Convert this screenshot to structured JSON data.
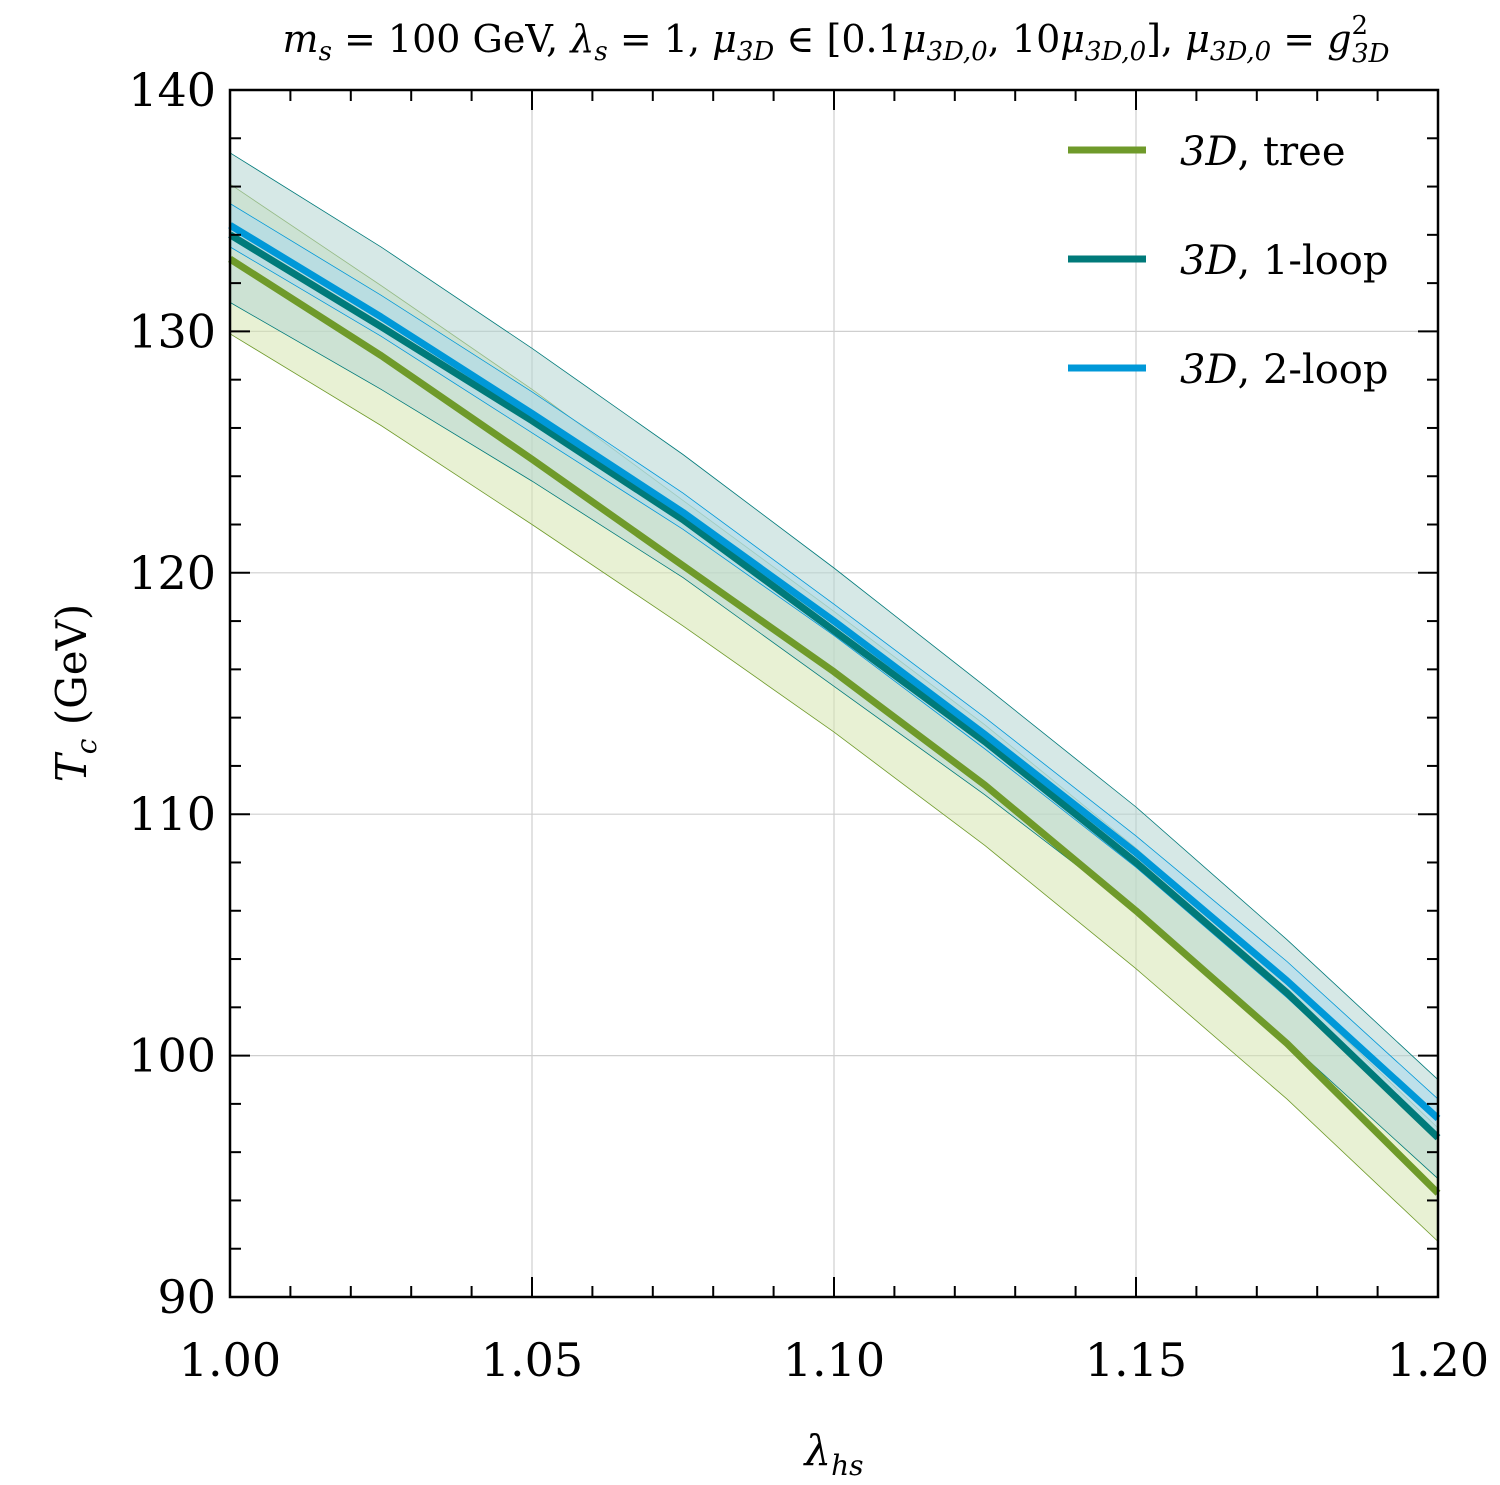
{
  "chart_data": {
    "type": "line",
    "title_parts": {
      "ms": "m",
      "ms_sub": "s",
      "ms_value": " = 100 GeV, ",
      "lambda": "λ",
      "lambda_sub": "s",
      "lambda_value": " = 1, ",
      "mu": "μ",
      "mu_sub": "3D",
      "mu_range_a": " ∈ [0.1",
      "mu_range_b": ", 10",
      "mu_range_c": "], ",
      "mu0_sub": "3D,0",
      "equals": " = ",
      "g": "g",
      "g_sup": "2",
      "g_sub": "3D"
    },
    "xlabel": {
      "symbol": "λ",
      "sub": "hs"
    },
    "ylabel": {
      "symbol": "T",
      "sub": "c",
      "unit": " (GeV)"
    },
    "xlim": [
      1.0,
      1.2
    ],
    "ylim": [
      90,
      140
    ],
    "x_ticks": [
      1.0,
      1.05,
      1.1,
      1.15,
      1.2
    ],
    "x_tick_labels": [
      "1.00",
      "1.05",
      "1.10",
      "1.15",
      "1.20"
    ],
    "y_ticks": [
      90,
      100,
      110,
      120,
      130,
      140
    ],
    "y_tick_labels": [
      "90",
      "100",
      "110",
      "120",
      "130",
      "140"
    ],
    "x_minor_step": 0.01,
    "y_minor_step": 2,
    "grid": true,
    "legend_position": "top-right",
    "x": [
      1.0,
      1.025,
      1.05,
      1.075,
      1.1,
      1.125,
      1.15,
      1.175,
      1.2
    ],
    "series": [
      {
        "name": "tree",
        "label_math": "3D",
        "label_text": ", tree",
        "color": "#6f9a2a",
        "band_color": "#d6e5b0",
        "values": [
          133.0,
          129.0,
          124.7,
          120.3,
          115.9,
          111.2,
          106.0,
          100.5,
          94.3
        ],
        "lower": [
          129.9,
          126.1,
          122.0,
          117.8,
          113.4,
          108.7,
          103.6,
          98.2,
          92.3
        ],
        "upper": [
          136.1,
          131.9,
          127.6,
          123.0,
          118.4,
          113.7,
          108.6,
          103.0,
          97.0
        ]
      },
      {
        "name": "1-loop",
        "label_math": "3D",
        "label_text": ", 1-loop",
        "color": "#007a7a",
        "band_color": "#b5d6d2",
        "values": [
          134.0,
          130.2,
          126.3,
          122.2,
          117.6,
          113.0,
          108.0,
          102.6,
          96.6
        ],
        "lower": [
          131.2,
          127.6,
          123.8,
          119.8,
          115.3,
          110.8,
          106.0,
          100.6,
          94.9
        ],
        "upper": [
          137.4,
          133.5,
          129.3,
          124.9,
          120.2,
          115.3,
          110.3,
          104.8,
          99.0
        ]
      },
      {
        "name": "2-loop",
        "label_math": "3D",
        "label_text": ", 2-loop",
        "color": "#0098d8",
        "band_color": "#a9d8ec",
        "values": [
          134.4,
          130.6,
          126.6,
          122.5,
          118.0,
          113.3,
          108.4,
          103.1,
          97.4
        ],
        "lower": [
          133.5,
          129.8,
          125.8,
          121.8,
          117.4,
          112.7,
          107.8,
          102.4,
          96.6
        ],
        "upper": [
          135.3,
          131.5,
          127.5,
          123.3,
          118.7,
          114.0,
          109.1,
          103.9,
          98.2
        ]
      }
    ]
  }
}
